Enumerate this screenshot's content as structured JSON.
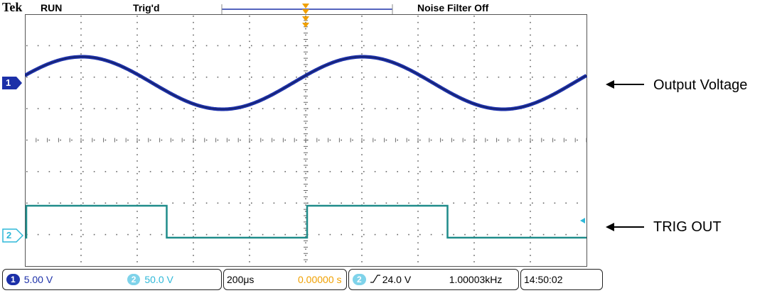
{
  "header": {
    "brand": "Tek",
    "run_state": "RUN",
    "trigger_state": "Trig'd",
    "noise_filter": "Noise Filter Off"
  },
  "channels": {
    "ch1": {
      "marker": "1",
      "color": "#1c30a8"
    },
    "ch2": {
      "marker": "2",
      "color": "#2fb8d8"
    }
  },
  "labels": {
    "output_voltage": "Output Voltage",
    "trig_out": "TRIG OUT"
  },
  "status_bar": {
    "ch1_pill": "1",
    "ch1_scale": "5.00 V",
    "ch2_pill": "2",
    "ch2_scale": "50.0 V",
    "timebase": "200μs",
    "trigger_position": "0.00000 s",
    "trigger_channel_pill": "2",
    "trigger_level": "24.0 V",
    "frequency": "1.00003kHz",
    "clock": "14:50:02"
  },
  "waveforms": {
    "ch1": {
      "type": "sine",
      "frequency_hz": 1000,
      "cycles_on_screen": 2
    },
    "ch2": {
      "type": "square",
      "frequency_hz": 1000
    }
  },
  "colors": {
    "ch1_trace": "#1c30a8",
    "ch2_trace": "#1f8c8a",
    "trigger_marker": "#f0a000"
  }
}
